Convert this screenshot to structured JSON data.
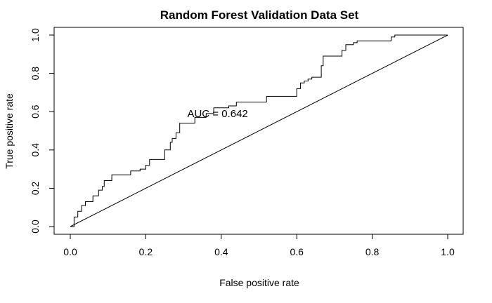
{
  "chart_data": {
    "type": "line",
    "title": "Random Forest Validation Data Set",
    "xlabel": "False positive rate",
    "ylabel": "True positive rate",
    "xlim": [
      0,
      1
    ],
    "ylim": [
      0,
      1
    ],
    "x_ticks": [
      "0.0",
      "0.2",
      "0.4",
      "0.6",
      "0.8",
      "1.0"
    ],
    "y_ticks": [
      "0.0",
      "0.2",
      "0.4",
      "0.6",
      "0.8",
      "1.0"
    ],
    "grid": false,
    "annotation": {
      "text": "AUC = 0.642",
      "x": 0.31,
      "y": 0.59
    },
    "series": [
      {
        "x": [
          0,
          0.01,
          0.01,
          0.02,
          0.02,
          0.03,
          0.03,
          0.04,
          0.04,
          0.06,
          0.06,
          0.075,
          0.075,
          0.085,
          0.085,
          0.09,
          0.09,
          0.11,
          0.11,
          0.16,
          0.16,
          0.185,
          0.185,
          0.2,
          0.2,
          0.21,
          0.21,
          0.25,
          0.25,
          0.265,
          0.265,
          0.27,
          0.27,
          0.28,
          0.28,
          0.29,
          0.29,
          0.33,
          0.33,
          0.36,
          0.36,
          0.38,
          0.38,
          0.42,
          0.42,
          0.44,
          0.44,
          0.47,
          0.47,
          0.52,
          0.52,
          0.6,
          0.6,
          0.61,
          0.61,
          0.62,
          0.62,
          0.63,
          0.63,
          0.64,
          0.64,
          0.665,
          0.665,
          0.67,
          0.67,
          0.72,
          0.72,
          0.73,
          0.73,
          0.75,
          0.75,
          0.76,
          0.76,
          0.85,
          0.85,
          0.86,
          0.86,
          1.0
        ],
        "y": [
          0,
          0,
          0.05,
          0.05,
          0.08,
          0.08,
          0.11,
          0.11,
          0.13,
          0.13,
          0.16,
          0.16,
          0.19,
          0.19,
          0.21,
          0.21,
          0.24,
          0.24,
          0.27,
          0.27,
          0.29,
          0.29,
          0.3,
          0.3,
          0.32,
          0.32,
          0.35,
          0.35,
          0.4,
          0.4,
          0.44,
          0.44,
          0.46,
          0.46,
          0.49,
          0.49,
          0.54,
          0.54,
          0.57,
          0.57,
          0.59,
          0.59,
          0.62,
          0.62,
          0.63,
          0.63,
          0.65,
          0.65,
          0.65,
          0.65,
          0.68,
          0.68,
          0.72,
          0.72,
          0.75,
          0.75,
          0.76,
          0.76,
          0.77,
          0.77,
          0.78,
          0.78,
          0.84,
          0.84,
          0.89,
          0.89,
          0.92,
          0.92,
          0.95,
          0.95,
          0.96,
          0.96,
          0.97,
          0.97,
          0.99,
          0.99,
          1.0,
          1.0
        ]
      },
      {
        "x": [
          0,
          1
        ],
        "y": [
          0,
          1
        ]
      }
    ]
  }
}
